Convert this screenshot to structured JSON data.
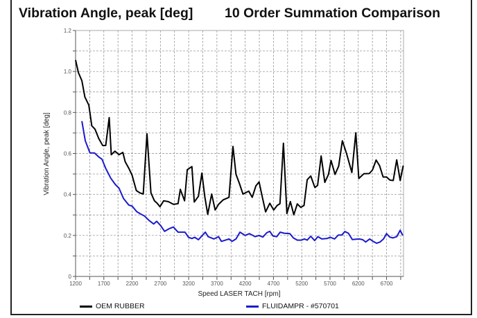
{
  "chart_data": {
    "type": "line",
    "title_left": "Vibration Angle, peak [deg]",
    "title_right": "10 Order Summation Comparison",
    "xlabel": "Speed LASER TACH [rpm]",
    "ylabel": "Vibration Angle, peak [deg]",
    "xlim": [
      1200,
      7000
    ],
    "ylim": [
      0,
      1.2
    ],
    "xticks": [
      1200,
      1700,
      2200,
      2700,
      3200,
      3700,
      4200,
      4700,
      5200,
      5700,
      6200,
      6700
    ],
    "yticks": [
      0,
      0.2,
      0.4,
      0.6,
      0.8,
      1.0,
      1.2
    ],
    "ytick_labels": [
      "0",
      "0.2",
      "0.4",
      "0.6",
      "0.8",
      "1.0",
      "1.2"
    ],
    "grid": true,
    "legend_position": "bottom",
    "series": [
      {
        "name": "OEM RUBBER",
        "color": "#000000",
        "x": [
          1200,
          1250,
          1311,
          1364,
          1434,
          1487,
          1544,
          1610,
          1680,
          1733,
          1795,
          1831,
          1897,
          1967,
          2036,
          2077,
          2143,
          2200,
          2274,
          2336,
          2397,
          2463,
          2533,
          2594,
          2643,
          2692,
          2758,
          2840,
          2930,
          3012,
          3053,
          3127,
          3176,
          3258,
          3299,
          3373,
          3434,
          3484,
          3537,
          3607,
          3668,
          3730,
          3812,
          3914,
          3984,
          4037,
          4099,
          4160,
          4263,
          4324,
          4389,
          4446,
          4500,
          4561,
          4635,
          4704,
          4765,
          4815,
          4876,
          4937,
          4999,
          5060,
          5121,
          5183,
          5240,
          5297,
          5359,
          5432,
          5481,
          5543,
          5608,
          5673,
          5718,
          5788,
          5853,
          5919,
          5992,
          6087,
          6156,
          6209,
          6299,
          6393,
          6451,
          6516,
          6577,
          6639,
          6700,
          6761,
          6819,
          6880,
          6941,
          6995
        ],
        "y": [
          1.056,
          0.994,
          0.955,
          0.876,
          0.836,
          0.735,
          0.718,
          0.673,
          0.639,
          0.639,
          0.775,
          0.594,
          0.611,
          0.594,
          0.605,
          0.56,
          0.527,
          0.493,
          0.419,
          0.408,
          0.402,
          0.696,
          0.408,
          0.369,
          0.357,
          0.34,
          0.369,
          0.365,
          0.352,
          0.355,
          0.425,
          0.369,
          0.521,
          0.536,
          0.363,
          0.391,
          0.504,
          0.391,
          0.303,
          0.402,
          0.324,
          0.352,
          0.374,
          0.386,
          0.634,
          0.498,
          0.453,
          0.402,
          0.416,
          0.386,
          0.442,
          0.461,
          0.391,
          0.315,
          0.357,
          0.324,
          0.346,
          0.355,
          0.65,
          0.307,
          0.365,
          0.301,
          0.354,
          0.337,
          0.346,
          0.472,
          0.49,
          0.434,
          0.444,
          0.588,
          0.459,
          0.498,
          0.566,
          0.498,
          0.538,
          0.662,
          0.6,
          0.507,
          0.701,
          0.478,
          0.501,
          0.502,
          0.519,
          0.568,
          0.54,
          0.485,
          0.485,
          0.47,
          0.468,
          0.569,
          0.468,
          0.541
        ]
      },
      {
        "name": "FLUIDAMPR - #570701",
        "color": "#1a1acc",
        "x": [
          1311,
          1372,
          1454,
          1536,
          1610,
          1667,
          1733,
          1823,
          1905,
          1967,
          2049,
          2143,
          2200,
          2282,
          2356,
          2418,
          2500,
          2582,
          2635,
          2705,
          2774,
          2856,
          2930,
          3012,
          3135,
          3197,
          3258,
          3307,
          3373,
          3422,
          3496,
          3545,
          3648,
          3730,
          3779,
          3914,
          3967,
          4037,
          4107,
          4201,
          4275,
          4377,
          4446,
          4512,
          4581,
          4635,
          4692,
          4757,
          4819,
          4888,
          4990,
          5052,
          5121,
          5195,
          5248,
          5297,
          5359,
          5428,
          5486,
          5555,
          5645,
          5706,
          5780,
          5849,
          5910,
          5963,
          6025,
          6095,
          6217,
          6279,
          6332,
          6402,
          6463,
          6524,
          6585,
          6647,
          6700,
          6757,
          6811,
          6880,
          6941,
          6986
        ],
        "y": [
          0.758,
          0.662,
          0.603,
          0.602,
          0.583,
          0.572,
          0.527,
          0.479,
          0.448,
          0.431,
          0.38,
          0.348,
          0.343,
          0.316,
          0.304,
          0.295,
          0.273,
          0.256,
          0.269,
          0.248,
          0.22,
          0.233,
          0.241,
          0.216,
          0.216,
          0.191,
          0.185,
          0.191,
          0.179,
          0.194,
          0.216,
          0.194,
          0.183,
          0.194,
          0.171,
          0.183,
          0.171,
          0.183,
          0.216,
          0.2,
          0.209,
          0.194,
          0.2,
          0.192,
          0.213,
          0.22,
          0.197,
          0.194,
          0.216,
          0.211,
          0.209,
          0.188,
          0.177,
          0.177,
          0.183,
          0.177,
          0.196,
          0.175,
          0.194,
          0.183,
          0.185,
          0.191,
          0.183,
          0.202,
          0.202,
          0.219,
          0.211,
          0.18,
          0.183,
          0.179,
          0.168,
          0.183,
          0.171,
          0.162,
          0.168,
          0.183,
          0.209,
          0.192,
          0.188,
          0.194,
          0.225,
          0.2
        ]
      }
    ]
  }
}
